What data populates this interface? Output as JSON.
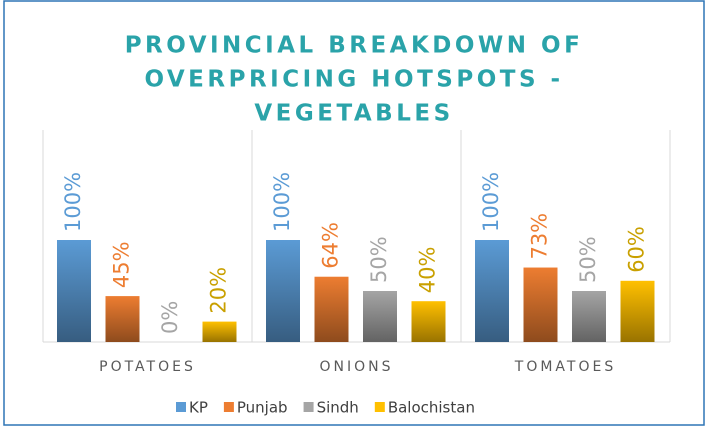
{
  "chart_data": {
    "type": "bar",
    "title": [
      "PROVINCIAL BREAKDOWN OF",
      "OVERPRICING HOTSPOTS -",
      "VEGETABLES"
    ],
    "categories": [
      "POTATOES",
      "ONIONS",
      "TOMATOES"
    ],
    "series": [
      {
        "name": "KP",
        "color": "#5b9bd5",
        "values": [
          100,
          100,
          100
        ],
        "value_labels": [
          "100%",
          "100%",
          "100%"
        ]
      },
      {
        "name": "Punjab",
        "color": "#ed7d31",
        "values": [
          45,
          64,
          73
        ],
        "value_labels": [
          "45%",
          "64%",
          "73%"
        ]
      },
      {
        "name": "Sindh",
        "color": "#a5a5a5",
        "values": [
          0,
          50,
          50
        ],
        "value_labels": [
          "0%",
          "50%",
          "50%"
        ]
      },
      {
        "name": "Balochistan",
        "color": "#ffc000",
        "values": [
          20,
          40,
          60
        ],
        "value_labels": [
          "20%",
          "40%",
          "60%"
        ]
      }
    ],
    "legend": "bottom"
  }
}
